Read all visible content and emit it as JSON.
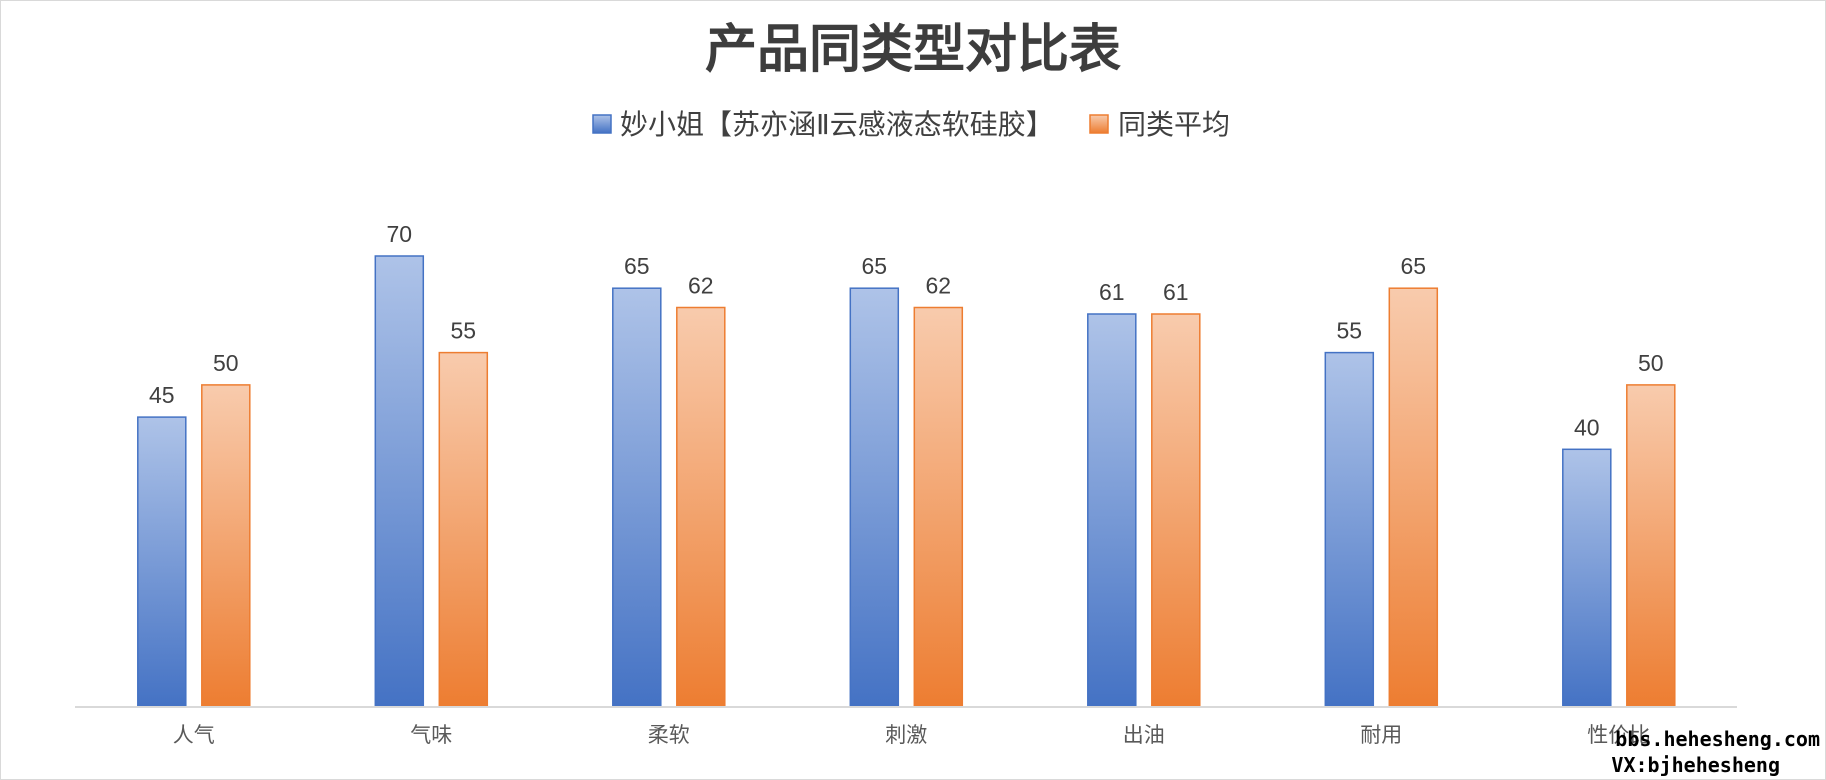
{
  "chart_data": {
    "type": "bar",
    "title": "产品同类型对比表",
    "categories": [
      "人气",
      "气味",
      "柔软",
      "刺激",
      "出油",
      "耐用",
      "性价比"
    ],
    "series": [
      {
        "name": "妙小姐【苏亦涵Ⅱ云感液态软硅胶】",
        "values": [
          45,
          70,
          65,
          65,
          61,
          55,
          40
        ],
        "color_top": "#aec3e8",
        "color_bottom": "#4472c4",
        "stroke": "#4472c4"
      },
      {
        "name": "同类平均",
        "values": [
          50,
          55,
          62,
          62,
          61,
          65,
          50
        ],
        "color_top": "#f8cbad",
        "color_bottom": "#ed7d31",
        "stroke": "#ed7d31"
      }
    ],
    "ylim": [
      0,
      70
    ],
    "legend_position": "top",
    "grid": false,
    "data_labels": true
  },
  "watermark": {
    "line1": "bbs.hehesheng.com",
    "line2": "VX:bjhehesheng"
  }
}
